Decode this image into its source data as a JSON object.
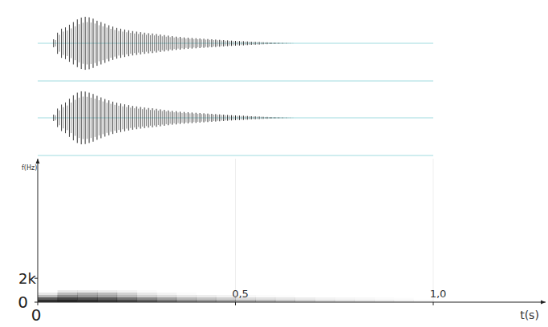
{
  "chart_data": [
    {
      "type": "waveform",
      "color": "#333333",
      "xlim": [
        0,
        1.0
      ],
      "ylim": [
        -1.3,
        1.3
      ],
      "tick_labels": false,
      "x": [
        0.04,
        0.05,
        0.06,
        0.07,
        0.08,
        0.09,
        0.1,
        0.11,
        0.12,
        0.13,
        0.14,
        0.15,
        0.16,
        0.17,
        0.18,
        0.19,
        0.2,
        0.21,
        0.22,
        0.23,
        0.24,
        0.25,
        0.26,
        0.27,
        0.28,
        0.29,
        0.3,
        0.31,
        0.32,
        0.33,
        0.34,
        0.35,
        0.36,
        0.37,
        0.38,
        0.39,
        0.4,
        0.41,
        0.42,
        0.43,
        0.44,
        0.45,
        0.46,
        0.47,
        0.48,
        0.49,
        0.5,
        0.51,
        0.52,
        0.53,
        0.54,
        0.55,
        0.56,
        0.57,
        0.58,
        0.59,
        0.6,
        0.61,
        0.62,
        0.63,
        0.64
      ],
      "values": [
        0.15,
        0.4,
        0.55,
        0.6,
        0.7,
        0.8,
        0.9,
        0.97,
        1.0,
        0.98,
        0.93,
        0.85,
        0.8,
        0.74,
        0.68,
        0.63,
        0.58,
        0.55,
        0.52,
        0.49,
        0.46,
        0.44,
        0.42,
        0.4,
        0.38,
        0.37,
        0.35,
        0.33,
        0.31,
        0.29,
        0.27,
        0.25,
        0.24,
        0.22,
        0.21,
        0.2,
        0.19,
        0.18,
        0.17,
        0.16,
        0.15,
        0.14,
        0.13,
        0.12,
        0.11,
        0.1,
        0.09,
        0.085,
        0.08,
        0.07,
        0.06,
        0.055,
        0.05,
        0.04,
        0.035,
        0.03,
        0.025,
        0.02,
        0.015,
        0.01,
        0.005
      ]
    },
    {
      "type": "waveform",
      "color": "#333333",
      "xlim": [
        0,
        1.0
      ],
      "ylim": [
        -1.3,
        1.3
      ],
      "tick_labels": false,
      "x": [
        0.04,
        0.05,
        0.06,
        0.07,
        0.08,
        0.09,
        0.1,
        0.11,
        0.12,
        0.13,
        0.14,
        0.15,
        0.16,
        0.17,
        0.18,
        0.19,
        0.2,
        0.21,
        0.22,
        0.23,
        0.24,
        0.25,
        0.26,
        0.27,
        0.28,
        0.29,
        0.3,
        0.31,
        0.32,
        0.33,
        0.34,
        0.35,
        0.36,
        0.37,
        0.38,
        0.39,
        0.4,
        0.41,
        0.42,
        0.43,
        0.44,
        0.45,
        0.46,
        0.47,
        0.48,
        0.49,
        0.5,
        0.51,
        0.52,
        0.53,
        0.54,
        0.55,
        0.56,
        0.57,
        0.58,
        0.59,
        0.6,
        0.61,
        0.62,
        0.63,
        0.64
      ],
      "values": [
        0.12,
        0.35,
        0.5,
        0.58,
        0.72,
        0.85,
        0.95,
        1.0,
        0.99,
        0.95,
        0.9,
        0.83,
        0.77,
        0.71,
        0.66,
        0.61,
        0.57,
        0.54,
        0.51,
        0.48,
        0.45,
        0.43,
        0.41,
        0.39,
        0.37,
        0.36,
        0.34,
        0.32,
        0.3,
        0.28,
        0.26,
        0.25,
        0.23,
        0.22,
        0.21,
        0.2,
        0.19,
        0.18,
        0.17,
        0.16,
        0.15,
        0.14,
        0.13,
        0.12,
        0.11,
        0.1,
        0.09,
        0.085,
        0.08,
        0.07,
        0.06,
        0.055,
        0.05,
        0.04,
        0.035,
        0.03,
        0.025,
        0.02,
        0.015,
        0.01,
        0.005
      ]
    },
    {
      "type": "spectrogram",
      "x_label": "t(s)",
      "y_label": "f(Hz)",
      "color": "#1a1a1a",
      "grid": true,
      "xlim": [
        0,
        1.284
      ],
      "ylim": [
        0,
        12000
      ],
      "xticks": [
        0,
        {
          "value": 0.5,
          "label": "0,5"
        },
        {
          "value": 1.0,
          "label": "1,0"
        }
      ],
      "yticks": [
        0,
        {
          "value": 2000,
          "label": "2k"
        }
      ],
      "time_edges": [
        0,
        0.05,
        0.1,
        0.15,
        0.2,
        0.25,
        0.3,
        0.35,
        0.4,
        0.45,
        0.5,
        0.55,
        0.6,
        0.65,
        0.7,
        0.75,
        0.8,
        0.85,
        0.9,
        0.95,
        1.0
      ],
      "freq_edges": [
        0,
        200,
        400,
        600,
        800,
        1000
      ],
      "cells": [
        [
          0.9,
          0.95,
          0.9,
          0.85,
          0.8,
          0.7,
          0.6,
          0.5,
          0.45,
          0.4,
          0.35,
          0.3,
          0.25,
          0.2,
          0.15,
          0.12,
          0.1,
          0.08,
          0.05,
          0.03
        ],
        [
          0.7,
          0.8,
          0.75,
          0.7,
          0.6,
          0.5,
          0.4,
          0.3,
          0.25,
          0.2,
          0.15,
          0.12,
          0.1,
          0.08,
          0.05,
          0.04,
          0.03,
          0.02,
          0.01,
          0
        ],
        [
          0.3,
          0.5,
          0.45,
          0.4,
          0.3,
          0.2,
          0.15,
          0.1,
          0.08,
          0.05,
          0.03,
          0.02,
          0.01,
          0,
          0,
          0,
          0,
          0,
          0,
          0
        ],
        [
          0.1,
          0.3,
          0.35,
          0.3,
          0.2,
          0.1,
          0.05,
          0.02,
          0,
          0,
          0,
          0,
          0,
          0,
          0,
          0,
          0,
          0,
          0,
          0
        ],
        [
          0,
          0.1,
          0.1,
          0.08,
          0.05,
          0.02,
          0,
          0,
          0,
          0,
          0,
          0,
          0,
          0,
          0,
          0,
          0,
          0,
          0,
          0
        ]
      ]
    }
  ]
}
